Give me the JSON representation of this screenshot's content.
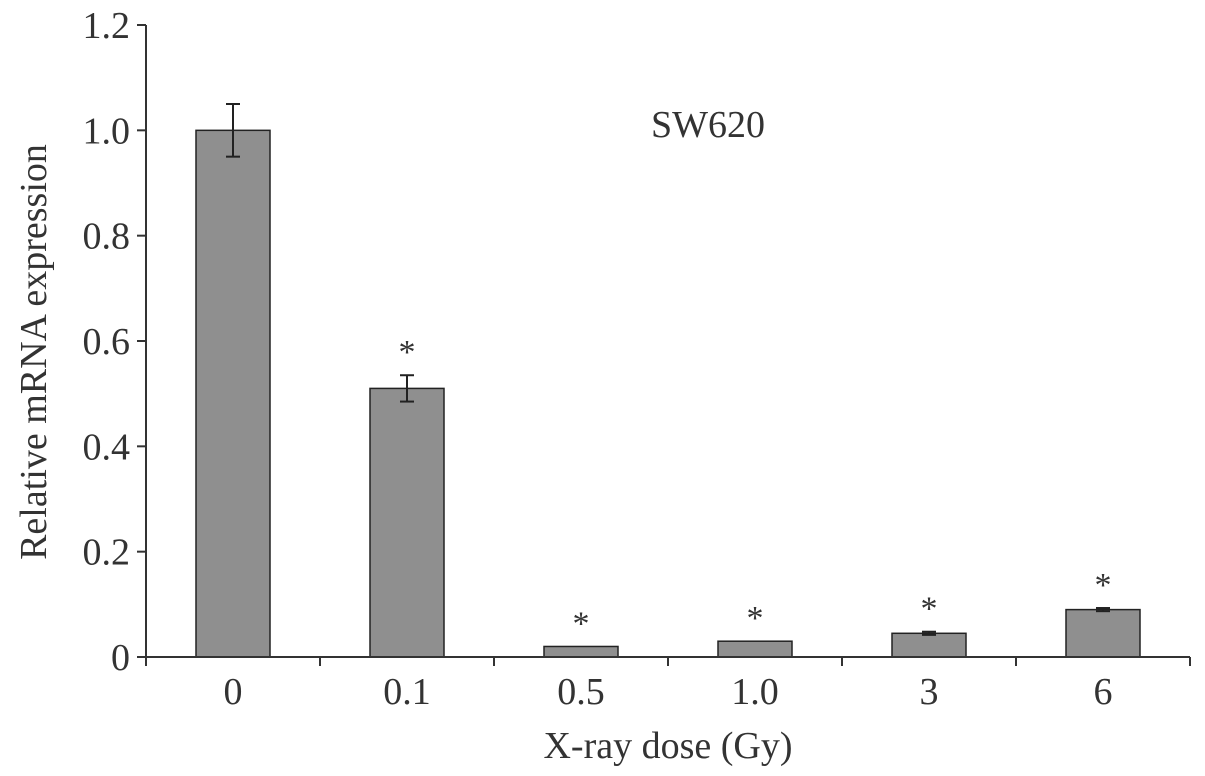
{
  "chart_data": {
    "type": "bar",
    "title": "",
    "annotation": "SW620",
    "xlabel": "X-ray dose (Gy)",
    "ylabel": "Relative mRNA expression",
    "categories": [
      "0",
      "0.1",
      "0.5",
      "1.0",
      "3",
      "6"
    ],
    "values": [
      1.0,
      0.51,
      0.02,
      0.03,
      0.045,
      0.09
    ],
    "errors": [
      0.05,
      0.025,
      0.0,
      0.0,
      0.003,
      0.003
    ],
    "significance": [
      "",
      "*",
      "*",
      "*",
      "*",
      "*"
    ],
    "ylim": [
      0,
      1.2
    ],
    "yticks": [
      "0",
      "0.2",
      "0.4",
      "0.6",
      "0.8",
      "1.0",
      "1.2"
    ],
    "grid": false,
    "colors": {
      "bar": "#8f8f8f",
      "axis": "#333333"
    }
  }
}
